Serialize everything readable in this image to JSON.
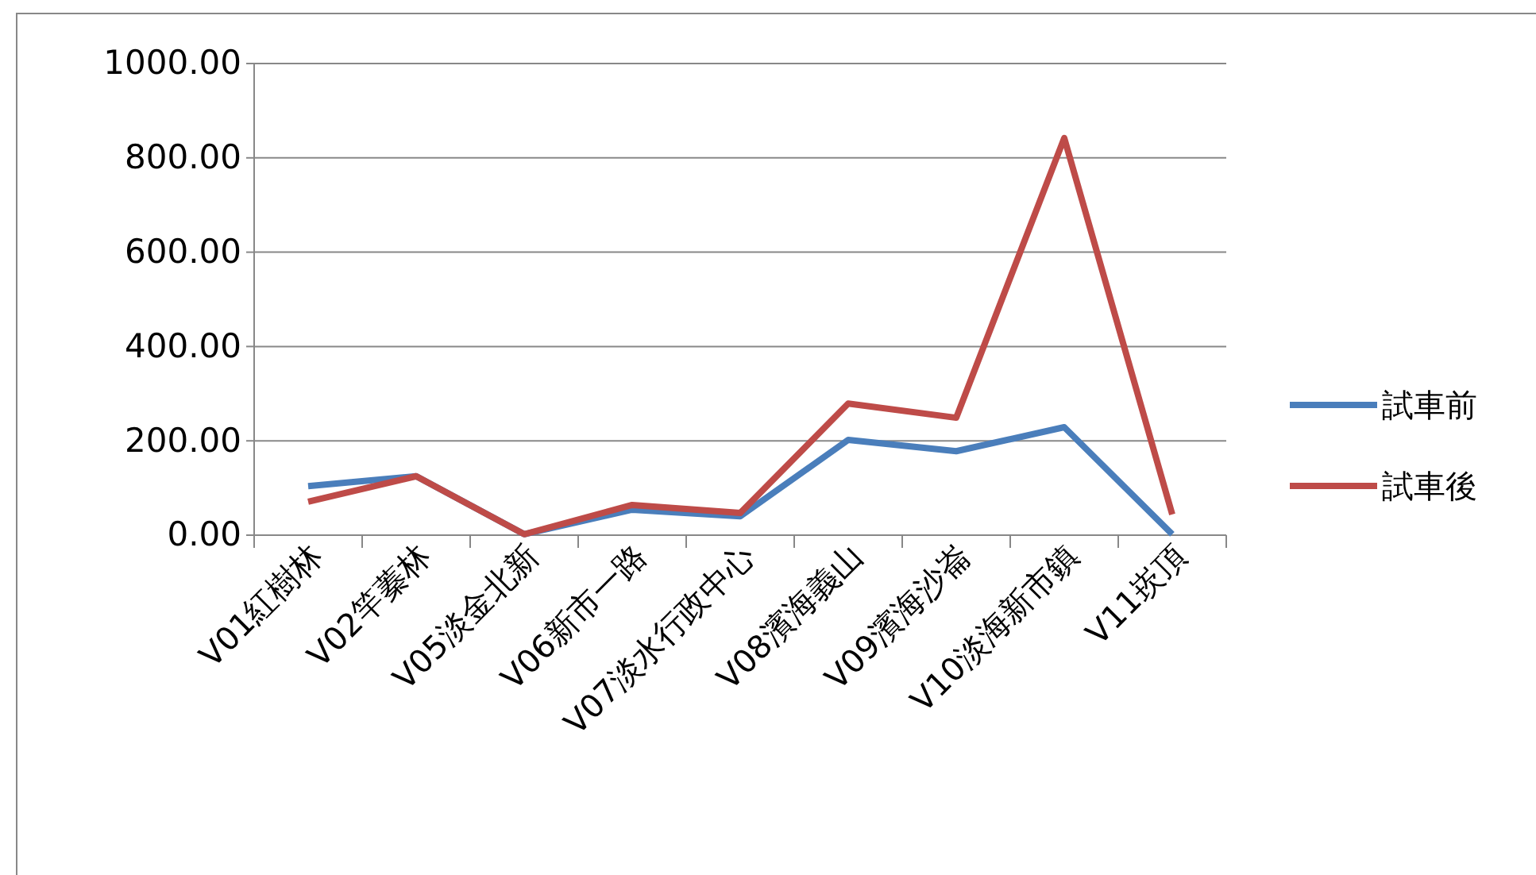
{
  "chart_data": {
    "type": "line",
    "categories": [
      "V01紅樹林",
      "V02竿蓁林",
      "V05淡金北新",
      "V06新市一路",
      "V07淡水行政中心",
      "V08濱海義山",
      "V09濱海沙崙",
      "V10淡海新市鎮",
      "V11崁頂"
    ],
    "series": [
      {
        "name": "試車前",
        "color": "#4a7ebb",
        "values": [
          104,
          125,
          2,
          54,
          40,
          202,
          178,
          229,
          2
        ]
      },
      {
        "name": "試車後",
        "color": "#be4b48",
        "values": [
          71,
          125,
          2,
          64,
          47,
          279,
          249,
          842,
          44
        ]
      }
    ],
    "ylim": [
      0,
      1000
    ],
    "yticks": [
      {
        "value": 0,
        "label": "0.00"
      },
      {
        "value": 200,
        "label": "200.00"
      },
      {
        "value": 400,
        "label": "400.00"
      },
      {
        "value": 600,
        "label": "600.00"
      },
      {
        "value": 800,
        "label": "800.00"
      },
      {
        "value": 1000,
        "label": "1000.00"
      }
    ],
    "grid": "y",
    "legend": "right",
    "marker": "none",
    "line_style": "solid"
  }
}
